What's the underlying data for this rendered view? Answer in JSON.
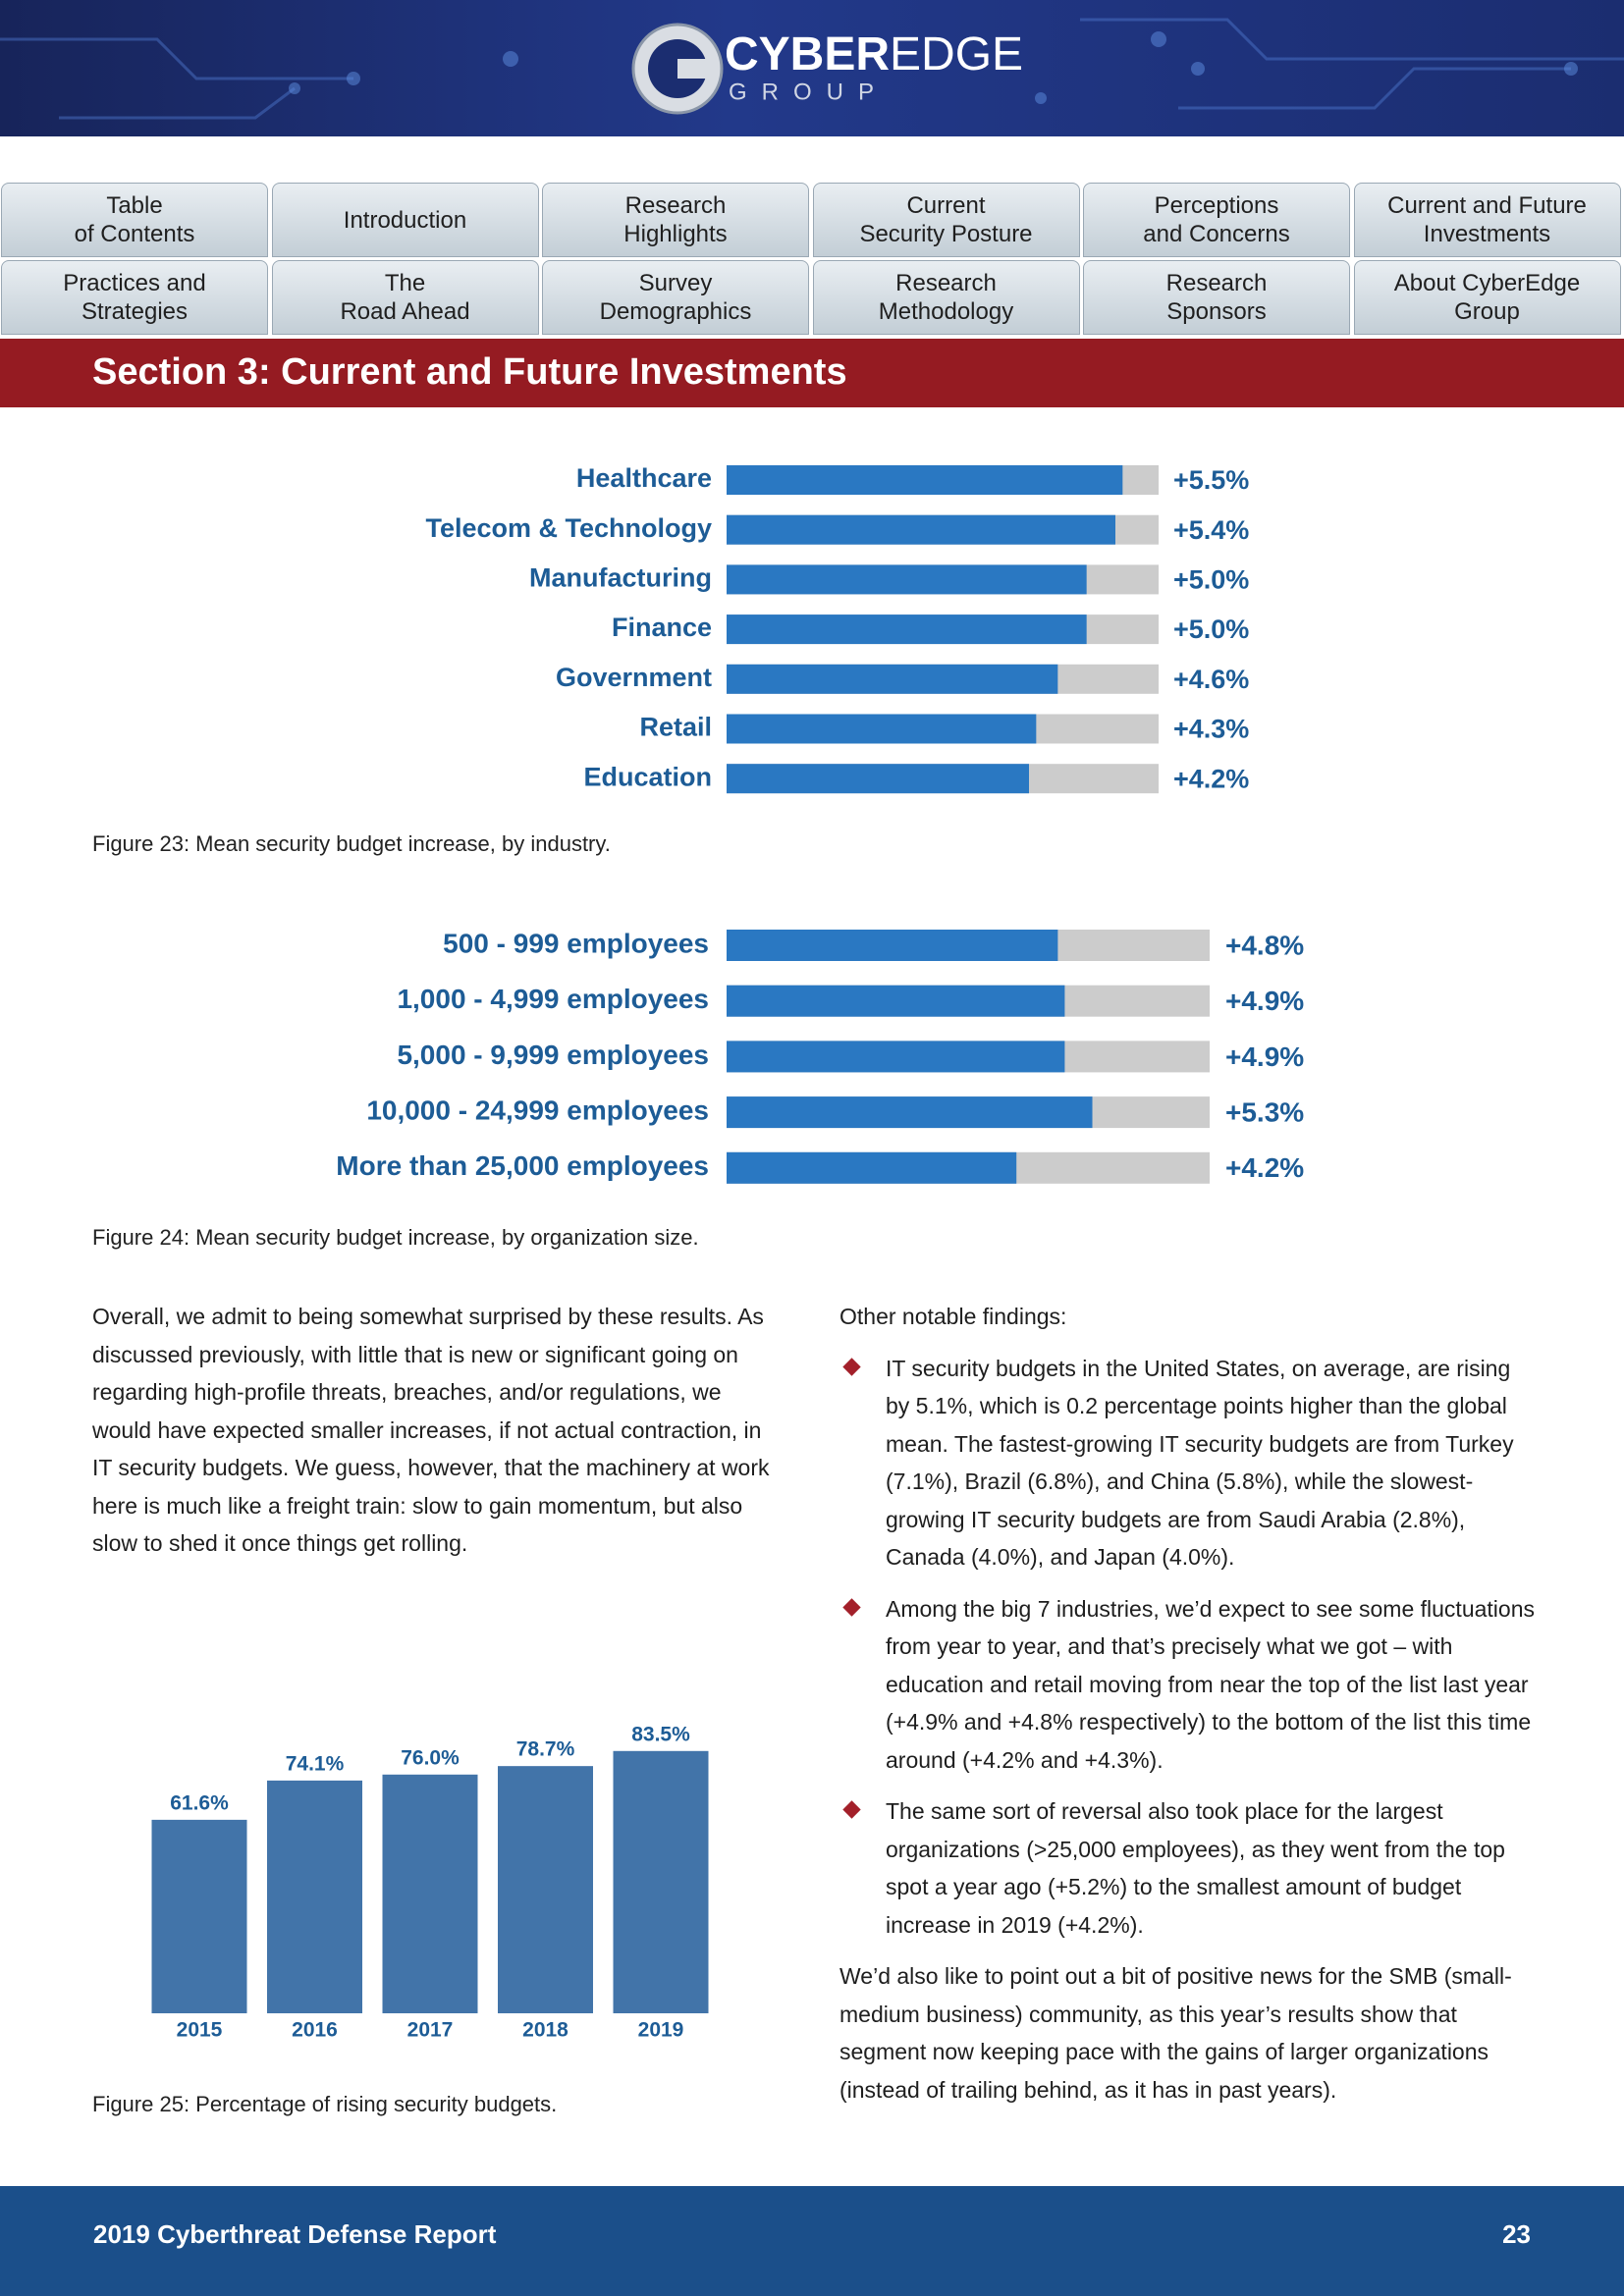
{
  "header": {
    "logo_main": "CYBER",
    "logo_accent": "EDGE",
    "logo_sub": "GROUP"
  },
  "nav": [
    "Table\nof Contents",
    "Introduction",
    "Research\nHighlights",
    "Current\nSecurity Posture",
    "Perceptions\nand Concerns",
    "Current and Future\nInvestments",
    "Practices and\nStrategies",
    "The\nRoad Ahead",
    "Survey\nDemographics",
    "Research\nMethodology",
    "Research\nSponsors",
    "About CyberEdge\nGroup"
  ],
  "section_title": "Section 3: Current and Future Investments",
  "chart_data": [
    {
      "type": "bar",
      "orientation": "horizontal",
      "caption": "Figure 23: Mean security budget increase, by industry.",
      "categories": [
        "Healthcare",
        "Telecom & Technology",
        "Manufacturing",
        "Finance",
        "Government",
        "Retail",
        "Education"
      ],
      "values": [
        5.5,
        5.4,
        5.0,
        5.0,
        4.6,
        4.3,
        4.2
      ],
      "value_labels": [
        "+5.5%",
        "+5.4%",
        "+5.0%",
        "+5.0%",
        "+4.6%",
        "+4.3%",
        "+4.2%"
      ],
      "xlim": [
        0,
        6
      ],
      "color": "#2a78c2",
      "track_color": "#cccccc"
    },
    {
      "type": "bar",
      "orientation": "horizontal",
      "caption": "Figure 24: Mean security budget increase, by organization size.",
      "categories": [
        "500 - 999 employees",
        "1,000 - 4,999 employees",
        "5,000 - 9,999 employees",
        "10,000 - 24,999 employees",
        "More than 25,000 employees"
      ],
      "values": [
        4.8,
        4.9,
        4.9,
        5.3,
        4.2
      ],
      "value_labels": [
        "+4.8%",
        "+4.9%",
        "+4.9%",
        "+5.3%",
        "+4.2%"
      ],
      "xlim": [
        0,
        7
      ],
      "color": "#2a78c2",
      "track_color": "#cccccc"
    },
    {
      "type": "bar",
      "orientation": "vertical",
      "caption": "Figure 25: Percentage of rising security budgets.",
      "categories": [
        "2015",
        "2016",
        "2017",
        "2018",
        "2019"
      ],
      "values": [
        61.6,
        74.1,
        76.0,
        78.7,
        83.5
      ],
      "value_labels": [
        "61.6%",
        "74.1%",
        "76.0%",
        "78.7%",
        "83.5%"
      ],
      "ylim": [
        0,
        100
      ],
      "color": "#4274a9"
    }
  ],
  "body": {
    "left_paragraph": "Overall, we admit to being somewhat surprised by these results. As discussed previously, with little that is new or significant going on regarding high-profile threats, breaches, and/or regulations, we would have expected smaller increases, if not actual contraction, in IT security budgets. We guess, however, that the machinery at work here is much like a freight train: slow to gain momentum, but also slow to shed it once things get rolling.",
    "right_intro": "Other notable findings:",
    "bullets": [
      "IT security budgets in the United States, on average, are rising by 5.1%, which is 0.2 percentage points higher than the global mean. The fastest-growing IT security budgets are from Turkey (7.1%), Brazil (6.8%), and China (5.8%), while the slowest-growing IT security budgets are from Saudi Arabia (2.8%), Canada (4.0%), and Japan (4.0%).",
      "Among the big 7 industries, we’d expect to see some fluctuations from year to year, and that’s precisely what we got – with education and retail moving from near the top of the list last year (+4.9% and +4.8% respectively) to the bottom of the list this time around (+4.2% and +4.3%).",
      "The same sort of reversal also took place for the largest organizations (>25,000 employees), as they went from the top spot a year ago (+5.2%) to the smallest amount of budget increase in 2019 (+4.2%)."
    ],
    "right_closing": "We’d also like to point out a bit of positive news for the SMB (small-medium business) community, as this year’s results show that segment now keeping pace with the gains of larger organizations (instead of trailing behind, as it has in past years)."
  },
  "footer": {
    "title": "2019 Cyberthreat Defense Report",
    "page_number": 23
  }
}
